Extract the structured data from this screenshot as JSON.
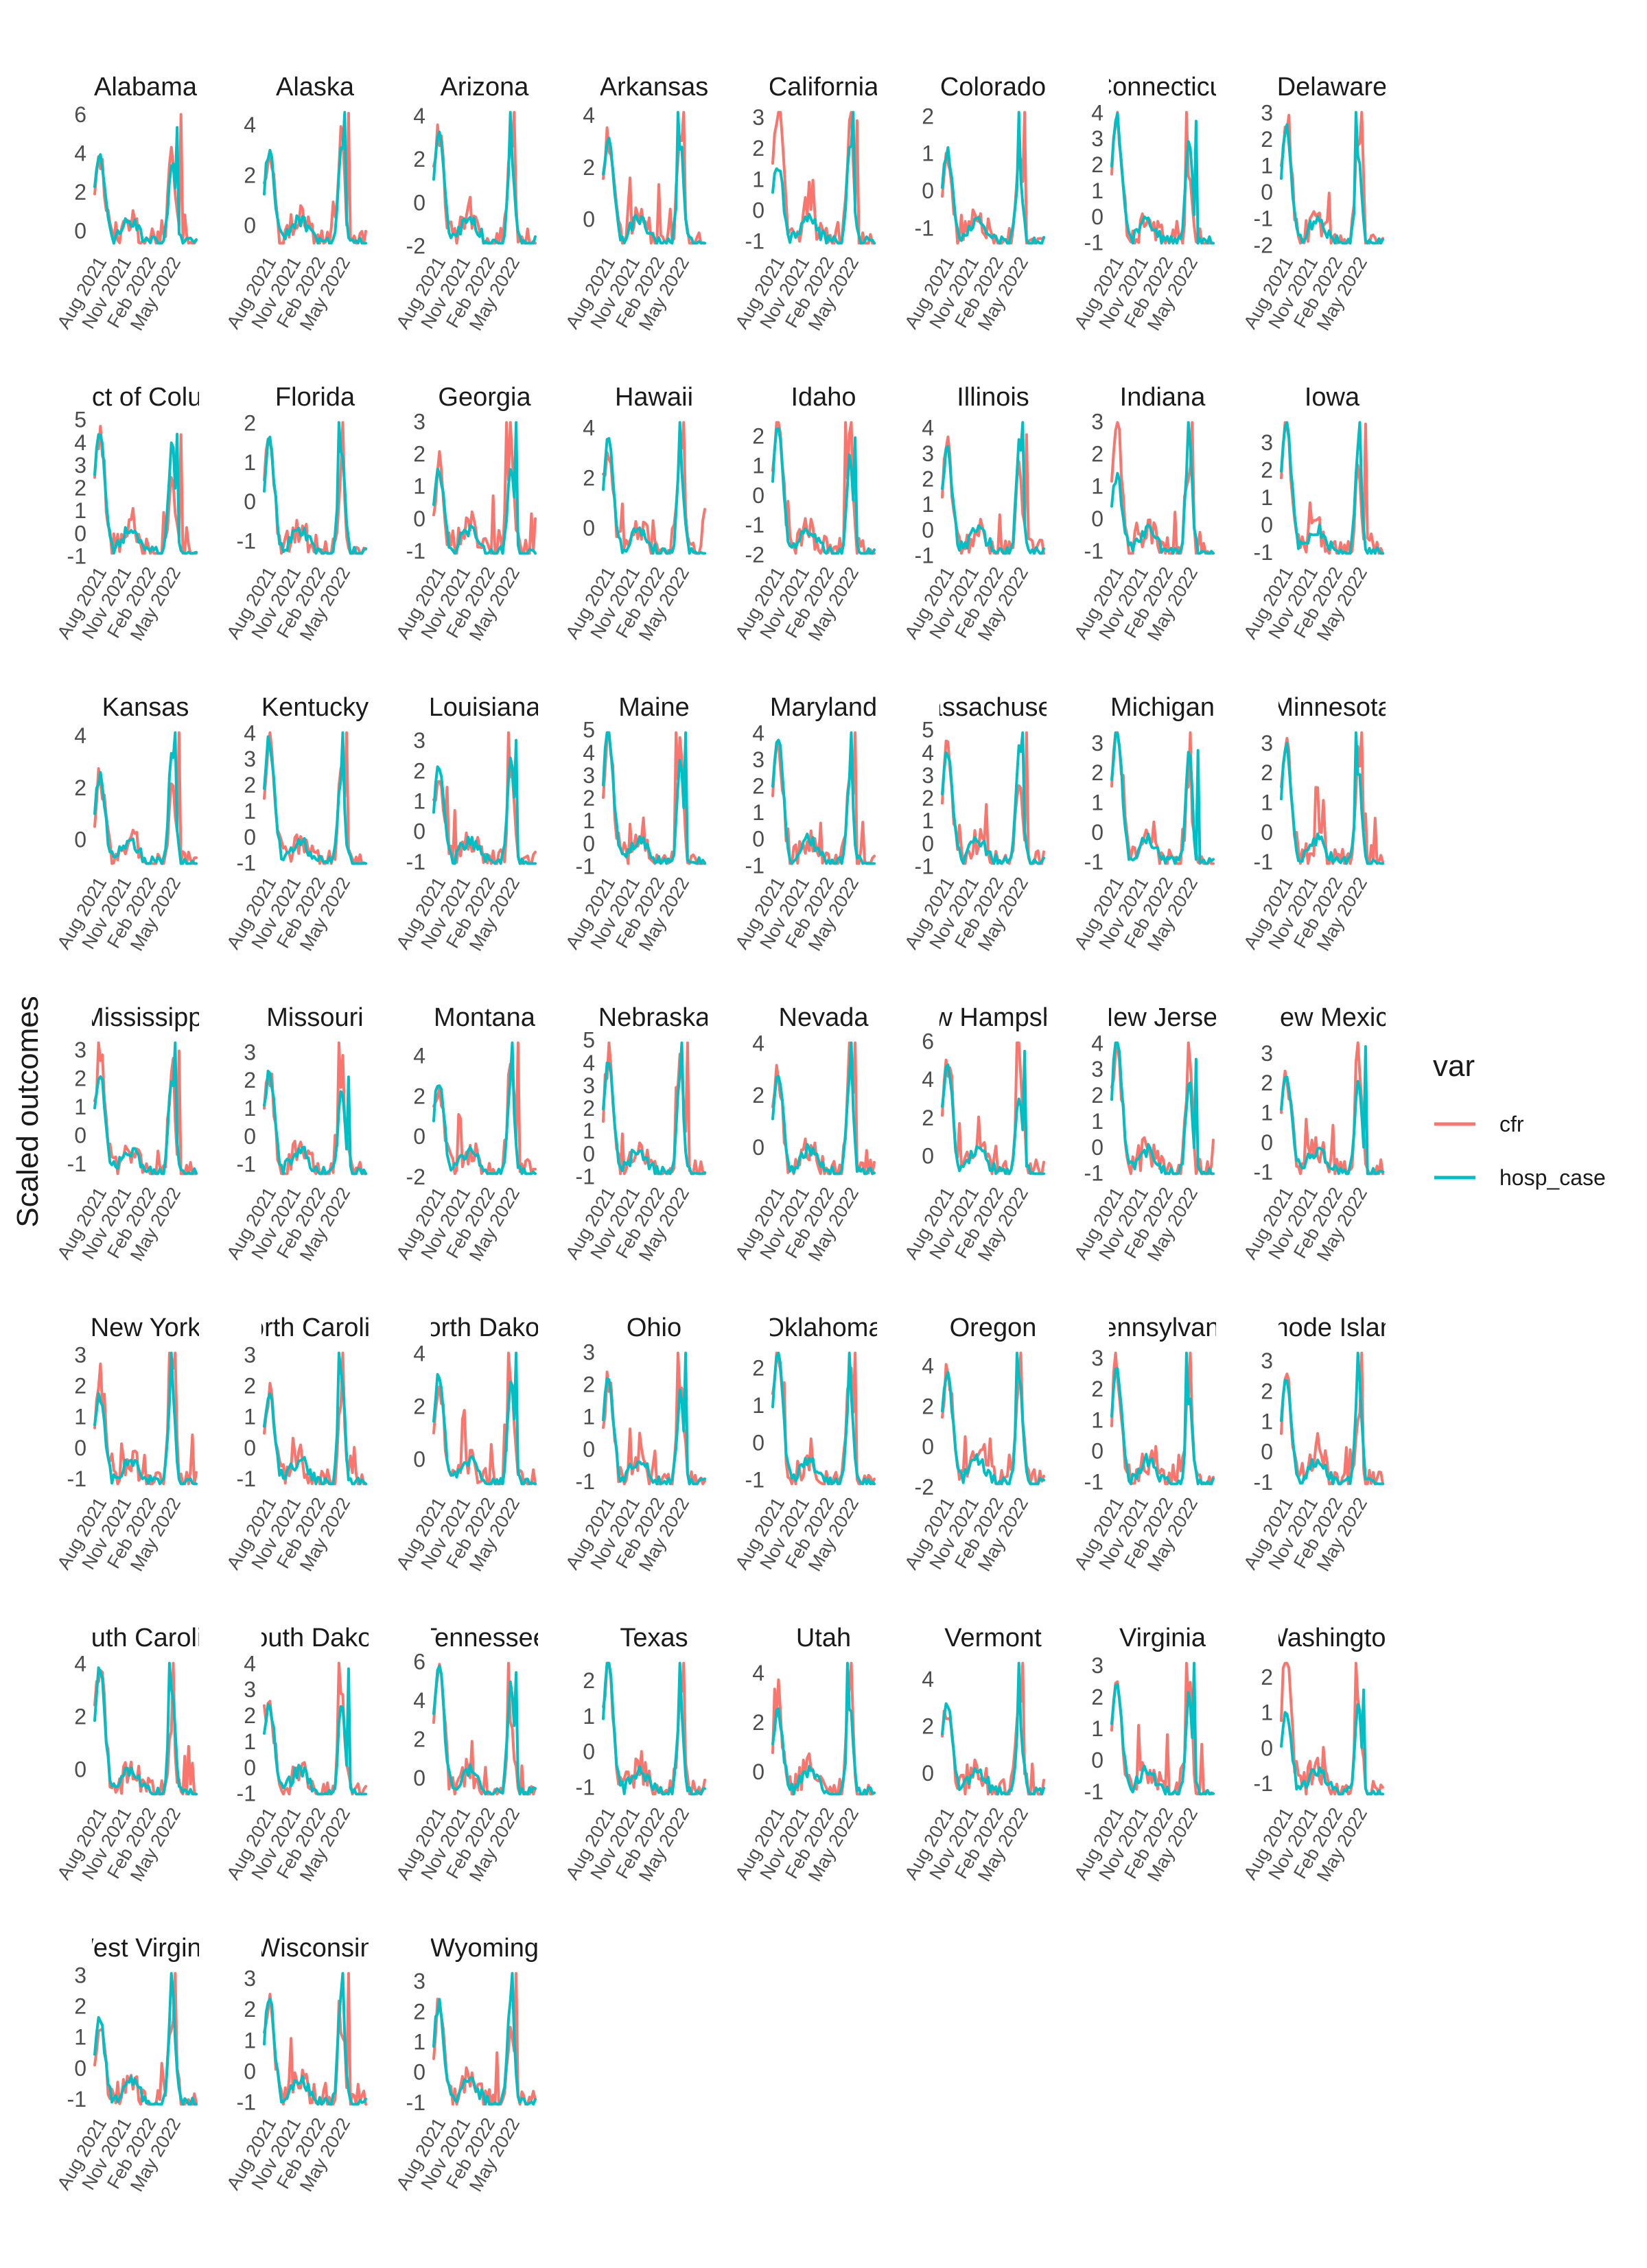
{
  "chart_data": {
    "type": "line",
    "title": "",
    "xlabel": "",
    "ylabel": "Scaled outcomes",
    "x_ticks": [
      "Aug 2021",
      "Nov 2021",
      "Feb 2022",
      "May 2022"
    ],
    "x_range": [
      "2021-06",
      "2022-08"
    ],
    "grid": false,
    "legend": {
      "title": "var",
      "placement": "right",
      "entries": [
        {
          "name": "cfr",
          "color": "#F8766D"
        },
        {
          "name": "hosp_case",
          "color": "#00BFC4"
        }
      ]
    },
    "facets": [
      {
        "title": "Alabama",
        "yticks": [
          "0",
          "2",
          "4",
          "6"
        ],
        "ylim": [
          -1.0,
          6.5
        ]
      },
      {
        "title": "Alaska",
        "yticks": [
          "0",
          "2",
          "4"
        ],
        "ylim": [
          -1.0,
          4.8
        ]
      },
      {
        "title": "Arizona",
        "yticks": [
          "-2",
          "0",
          "2",
          "4"
        ],
        "ylim": [
          -2.2,
          4.5
        ]
      },
      {
        "title": "Arkansas",
        "yticks": [
          "0",
          "2",
          "4"
        ],
        "ylim": [
          -1.2,
          4.4
        ]
      },
      {
        "title": "California",
        "yticks": [
          "-1",
          "0",
          "1",
          "2",
          "3"
        ],
        "ylim": [
          -1.3,
          3.4
        ]
      },
      {
        "title": "Colorado",
        "yticks": [
          "-1",
          "0",
          "1",
          "2"
        ],
        "ylim": [
          -1.6,
          2.3
        ]
      },
      {
        "title": "Connecticut",
        "yticks": [
          "-1",
          "0",
          "1",
          "2",
          "3",
          "4"
        ],
        "ylim": [
          -1.3,
          4.3
        ]
      },
      {
        "title": "Delaware",
        "yticks": [
          "-2",
          "-1",
          "0",
          "1",
          "2",
          "3"
        ],
        "ylim": [
          -2.2,
          3.3
        ]
      },
      {
        "title": "District of Columbia",
        "yticks": [
          "-1",
          "0",
          "1",
          "2",
          "3",
          "4",
          "5"
        ],
        "ylim": [
          -1.2,
          5.2
        ]
      },
      {
        "title": "Florida",
        "yticks": [
          "-1",
          "0",
          "1",
          "2"
        ],
        "ylim": [
          -1.5,
          2.2
        ]
      },
      {
        "title": "Georgia",
        "yticks": [
          "-1",
          "0",
          "1",
          "2",
          "3"
        ],
        "ylim": [
          -1.3,
          3.2
        ]
      },
      {
        "title": "Hawaii",
        "yticks": [
          "0",
          "2",
          "4"
        ],
        "ylim": [
          -1.3,
          4.5
        ]
      },
      {
        "title": "Idaho",
        "yticks": [
          "-2",
          "-1",
          "0",
          "1",
          "2"
        ],
        "ylim": [
          -2.2,
          2.7
        ]
      },
      {
        "title": "Illinois",
        "yticks": [
          "-1",
          "0",
          "1",
          "2",
          "3",
          "4"
        ],
        "ylim": [
          -1.2,
          4.5
        ]
      },
      {
        "title": "Indiana",
        "yticks": [
          "-1",
          "0",
          "1",
          "2",
          "3"
        ],
        "ylim": [
          -1.3,
          3.2
        ]
      },
      {
        "title": "Iowa",
        "yticks": [
          "-1",
          "0",
          "1",
          "2",
          "3"
        ],
        "ylim": [
          -1.3,
          4.0
        ]
      },
      {
        "title": "Kansas",
        "yticks": [
          "0",
          "2",
          "4"
        ],
        "ylim": [
          -1.2,
          4.4
        ]
      },
      {
        "title": "Kentucky",
        "yticks": [
          "-1",
          "0",
          "1",
          "2",
          "3",
          "4"
        ],
        "ylim": [
          -1.3,
          4.3
        ]
      },
      {
        "title": "Louisiana",
        "yticks": [
          "-1",
          "0",
          "1",
          "2",
          "3"
        ],
        "ylim": [
          -1.3,
          3.5
        ]
      },
      {
        "title": "Maine",
        "yticks": [
          "-1",
          "0",
          "1",
          "2",
          "3",
          "4",
          "5"
        ],
        "ylim": [
          -1.2,
          5.2
        ]
      },
      {
        "title": "Maryland",
        "yticks": [
          "-1",
          "0",
          "1",
          "2",
          "3",
          "4"
        ],
        "ylim": [
          -1.2,
          4.3
        ]
      },
      {
        "title": "Massachusetts",
        "yticks": [
          "-1",
          "0",
          "1",
          "2",
          "3",
          "4",
          "5"
        ],
        "ylim": [
          -1.2,
          5.2
        ]
      },
      {
        "title": "Michigan",
        "yticks": [
          "-1",
          "0",
          "1",
          "2",
          "3"
        ],
        "ylim": [
          -1.3,
          3.6
        ]
      },
      {
        "title": "Minnesota",
        "yticks": [
          "-1",
          "0",
          "1",
          "2",
          "3"
        ],
        "ylim": [
          -1.3,
          3.6
        ]
      },
      {
        "title": "Mississippi",
        "yticks": [
          "-1",
          "0",
          "1",
          "2",
          "3"
        ],
        "ylim": [
          -1.6,
          3.5
        ]
      },
      {
        "title": "Missouri",
        "yticks": [
          "-1",
          "0",
          "1",
          "2",
          "3"
        ],
        "ylim": [
          -1.6,
          3.6
        ]
      },
      {
        "title": "Montana",
        "yticks": [
          "-2",
          "0",
          "2",
          "4"
        ],
        "ylim": [
          -2.2,
          5.0
        ]
      },
      {
        "title": "Nebraska",
        "yticks": [
          "-1",
          "0",
          "1",
          "2",
          "3",
          "4",
          "5"
        ],
        "ylim": [
          -1.2,
          5.2
        ]
      },
      {
        "title": "Nevada",
        "yticks": [
          "0",
          "2",
          "4"
        ],
        "ylim": [
          -1.3,
          4.3
        ]
      },
      {
        "title": "New Hampshire",
        "yticks": [
          "0",
          "2",
          "4",
          "6"
        ],
        "ylim": [
          -1.3,
          6.3
        ]
      },
      {
        "title": "New Jersey",
        "yticks": [
          "-1",
          "0",
          "1",
          "2",
          "3",
          "4"
        ],
        "ylim": [
          -1.3,
          4.3
        ]
      },
      {
        "title": "New Mexico",
        "yticks": [
          "-1",
          "0",
          "1",
          "2",
          "3"
        ],
        "ylim": [
          -1.3,
          3.6
        ]
      },
      {
        "title": "New York",
        "yticks": [
          "-1",
          "0",
          "1",
          "2",
          "3"
        ],
        "ylim": [
          -1.4,
          3.3
        ]
      },
      {
        "title": "North Carolina",
        "yticks": [
          "-1",
          "0",
          "1",
          "2",
          "3"
        ],
        "ylim": [
          -1.4,
          3.3
        ]
      },
      {
        "title": "North Dakota",
        "yticks": [
          "0",
          "2",
          "4"
        ],
        "ylim": [
          -1.2,
          4.3
        ]
      },
      {
        "title": "Ohio",
        "yticks": [
          "-1",
          "0",
          "1",
          "2",
          "3"
        ],
        "ylim": [
          -1.3,
          3.2
        ]
      },
      {
        "title": "Oklahoma",
        "yticks": [
          "-1",
          "0",
          "1",
          "2"
        ],
        "ylim": [
          -1.3,
          2.6
        ]
      },
      {
        "title": "Oregon",
        "yticks": [
          "-2",
          "0",
          "2",
          "4"
        ],
        "ylim": [
          -2.2,
          5.0
        ]
      },
      {
        "title": "Pennsylvania",
        "yticks": [
          "-1",
          "0",
          "1",
          "2",
          "3"
        ],
        "ylim": [
          -1.3,
          3.4
        ]
      },
      {
        "title": "Rhode Island",
        "yticks": [
          "-1",
          "0",
          "1",
          "2",
          "3"
        ],
        "ylim": [
          -1.3,
          3.5
        ]
      },
      {
        "title": "South Carolina",
        "yticks": [
          "0",
          "2",
          "4"
        ],
        "ylim": [
          -1.2,
          4.3
        ]
      },
      {
        "title": "South Dakota",
        "yticks": [
          "-1",
          "0",
          "1",
          "2",
          "3",
          "4"
        ],
        "ylim": [
          -1.3,
          4.3
        ]
      },
      {
        "title": "Tennessee",
        "yticks": [
          "0",
          "2",
          "4",
          "6"
        ],
        "ylim": [
          -1.2,
          6.3
        ]
      },
      {
        "title": "Texas",
        "yticks": [
          "-1",
          "0",
          "1",
          "2"
        ],
        "ylim": [
          -1.4,
          2.7
        ]
      },
      {
        "title": "Utah",
        "yticks": [
          "0",
          "2",
          "4"
        ],
        "ylim": [
          -1.2,
          4.7
        ]
      },
      {
        "title": "Vermont",
        "yticks": [
          "0",
          "2",
          "4"
        ],
        "ylim": [
          -1.2,
          5.0
        ]
      },
      {
        "title": "Virginia",
        "yticks": [
          "-1",
          "0",
          "1",
          "2",
          "3"
        ],
        "ylim": [
          -1.3,
          3.3
        ]
      },
      {
        "title": "Washington",
        "yticks": [
          "-1",
          "0",
          "1",
          "2"
        ],
        "ylim": [
          -1.5,
          2.6
        ]
      },
      {
        "title": "West Virginia",
        "yticks": [
          "-1",
          "0",
          "1",
          "2",
          "3"
        ],
        "ylim": [
          -1.4,
          3.3
        ]
      },
      {
        "title": "Wisconsin",
        "yticks": [
          "-1",
          "0",
          "1",
          "2",
          "3"
        ],
        "ylim": [
          -1.3,
          3.4
        ]
      },
      {
        "title": "Wyoming",
        "yticks": [
          "-1",
          "0",
          "1",
          "2",
          "3"
        ],
        "ylim": [
          -1.3,
          3.5
        ]
      }
    ]
  }
}
